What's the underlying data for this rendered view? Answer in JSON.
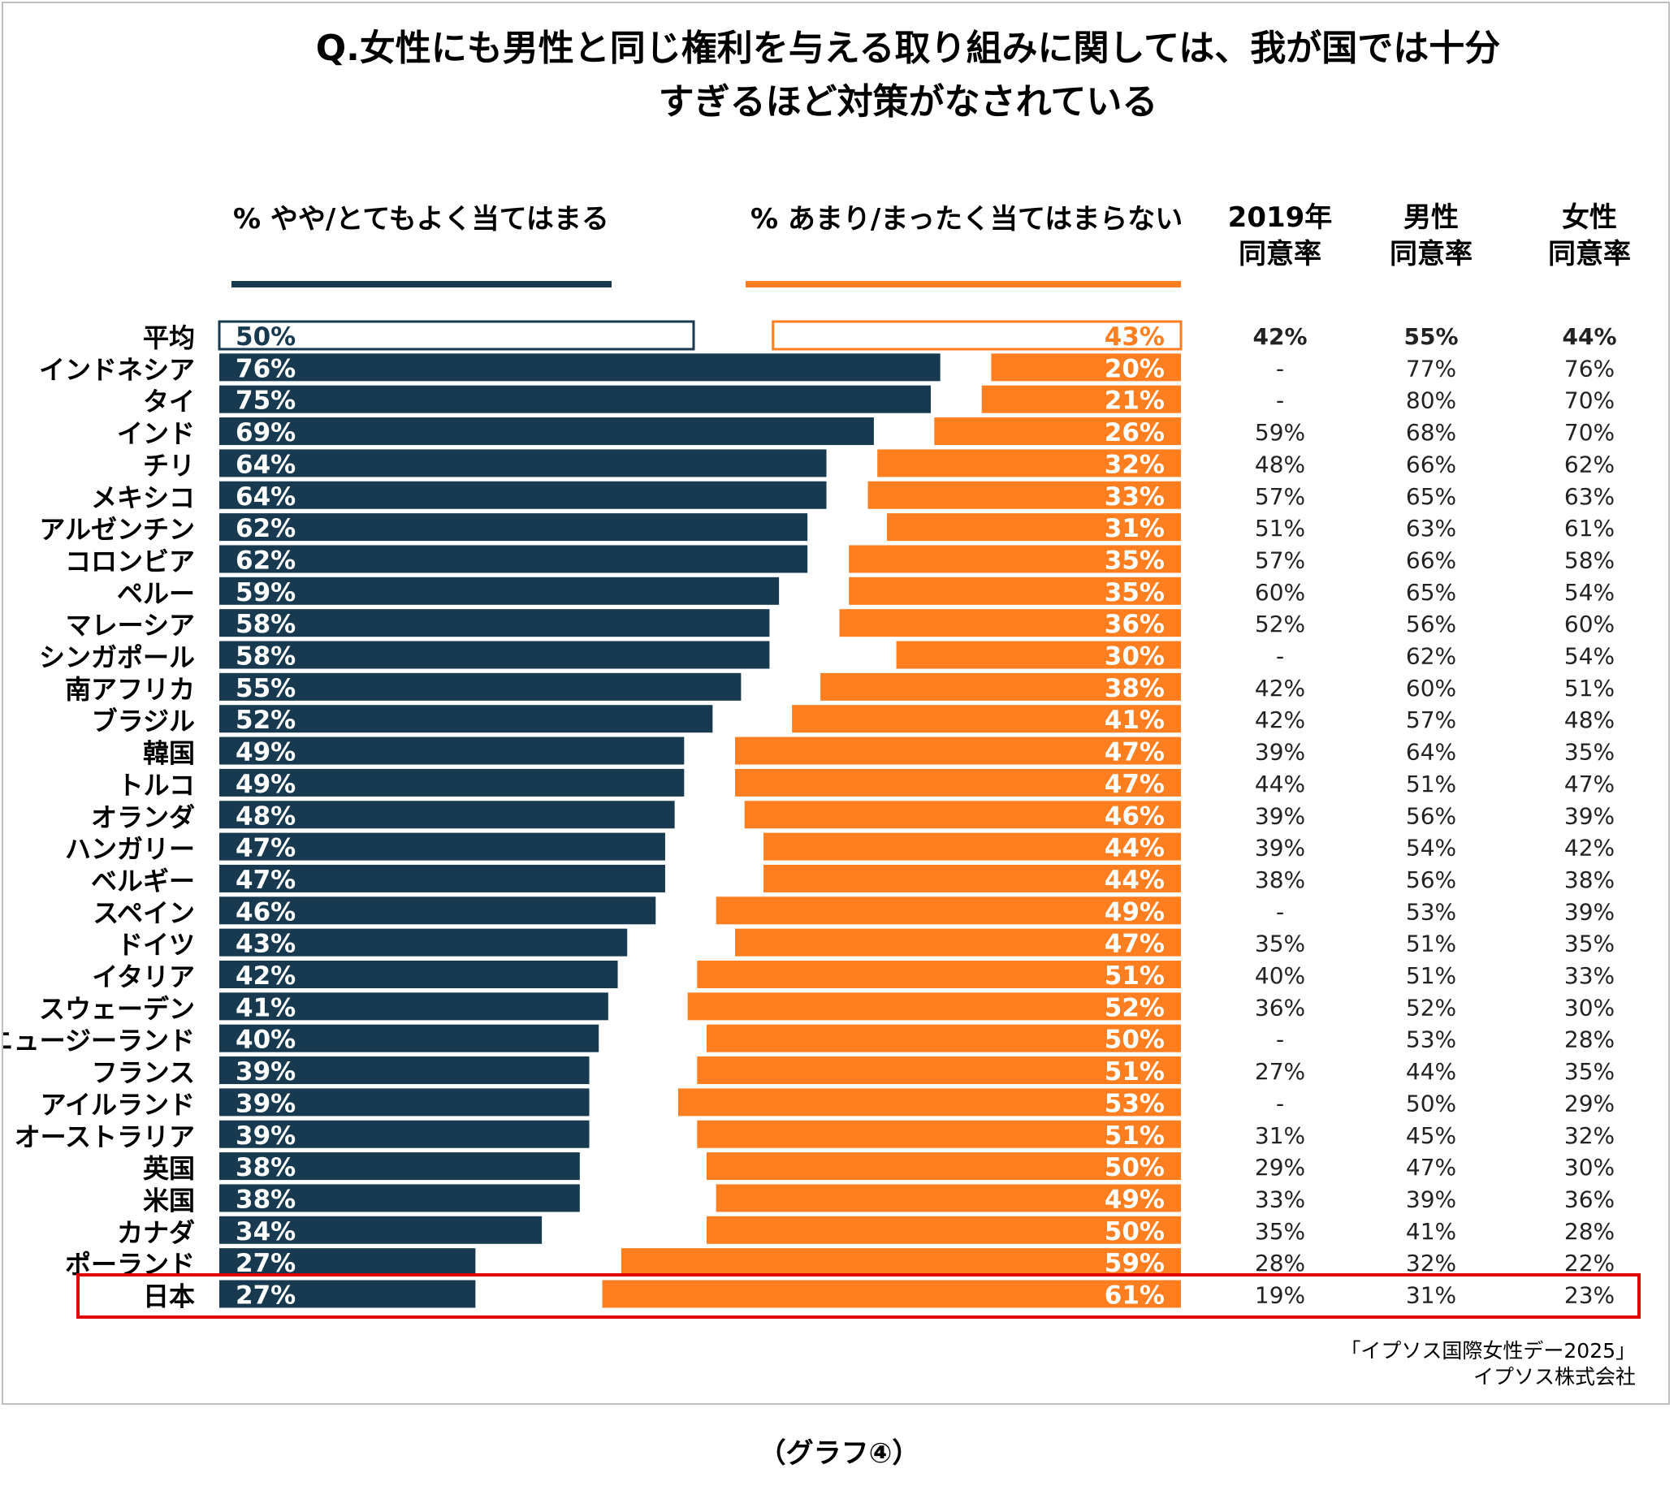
{
  "chart_data": {
    "type": "bar",
    "title_lines": [
      "Q.女性にも男性と同じ権利を与える取り組みに関しては、我が国では十分",
      "すぎるほど対策がなされている"
    ],
    "legend": {
      "agree": "% やや/とてもよく当てはまる",
      "disagree": "% あまり/まったく当てはまらない"
    },
    "column_headers": {
      "y2019": [
        "2019年",
        "同意率"
      ],
      "male": [
        "男性",
        "同意率"
      ],
      "female": [
        "女性",
        "同意率"
      ]
    },
    "xlim": [
      0,
      100
    ],
    "colors": {
      "agree": "#173a50",
      "disagree": "#ff7e1f",
      "highlight": "#e00000"
    },
    "highlight_row": "日本",
    "categories": [
      "平均",
      "インドネシア",
      "タイ",
      "インド",
      "チリ",
      "メキシコ",
      "アルゼンチン",
      "コロンビア",
      "ペルー",
      "マレーシア",
      "シンガポール",
      "南アフリカ",
      "ブラジル",
      "韓国",
      "トルコ",
      "オランダ",
      "ハンガリー",
      "ベルギー",
      "スペイン",
      "ドイツ",
      "イタリア",
      "スウェーデン",
      "ニュージーランド",
      "フランス",
      "アイルランド",
      "オーストラリア",
      "英国",
      "米国",
      "カナダ",
      "ポーランド",
      "日本"
    ],
    "series": [
      {
        "name": "% やや/とてもよく当てはまる",
        "values": [
          50,
          76,
          75,
          69,
          64,
          64,
          62,
          62,
          59,
          58,
          58,
          55,
          52,
          49,
          49,
          48,
          47,
          47,
          46,
          43,
          42,
          41,
          40,
          39,
          39,
          39,
          38,
          38,
          34,
          27,
          27
        ],
        "labels": [
          "50%",
          "76%",
          "75%",
          "69%",
          "64%",
          "64%",
          "62%",
          "62%",
          "59%",
          "58%",
          "58%",
          "55%",
          "52%",
          "49%",
          "49%",
          "48%",
          "47%",
          "47%",
          "46%",
          "43%",
          "42%",
          "41%",
          "40%",
          "39%",
          "39%",
          "39%",
          "38%",
          "38%",
          "34%",
          "27%",
          "27%"
        ]
      },
      {
        "name": "% あまり/まったく当てはまらない",
        "values": [
          43,
          20,
          21,
          26,
          32,
          33,
          31,
          35,
          35,
          36,
          30,
          38,
          41,
          47,
          47,
          46,
          44,
          44,
          49,
          47,
          51,
          52,
          50,
          51,
          53,
          51,
          50,
          49,
          50,
          59,
          61
        ],
        "labels": [
          "43%",
          "20%",
          "21%",
          "26%",
          "32%",
          "33%",
          "31%",
          "35%",
          "35%",
          "36%",
          "30%",
          "38%",
          "41%",
          "47%",
          "47%",
          "46%",
          "44%",
          "44%",
          "49%",
          "47%",
          "51%",
          "52%",
          "50%",
          "51%",
          "53%",
          "51%",
          "50%",
          "49%",
          "50%",
          "59%",
          "61%"
        ]
      }
    ],
    "table": {
      "y2019": [
        "42%",
        "-",
        "-",
        "59%",
        "48%",
        "57%",
        "51%",
        "57%",
        "60%",
        "52%",
        "-",
        "42%",
        "42%",
        "39%",
        "44%",
        "39%",
        "39%",
        "38%",
        "-",
        "35%",
        "40%",
        "36%",
        "-",
        "27%",
        "-",
        "31%",
        "29%",
        "33%",
        "35%",
        "28%",
        "19%"
      ],
      "male": [
        "55%",
        "77%",
        "80%",
        "68%",
        "66%",
        "65%",
        "63%",
        "66%",
        "65%",
        "56%",
        "62%",
        "60%",
        "57%",
        "64%",
        "51%",
        "56%",
        "54%",
        "56%",
        "53%",
        "51%",
        "51%",
        "52%",
        "53%",
        "44%",
        "50%",
        "45%",
        "47%",
        "39%",
        "41%",
        "32%",
        "31%"
      ],
      "female": [
        "44%",
        "76%",
        "70%",
        "70%",
        "62%",
        "63%",
        "61%",
        "58%",
        "54%",
        "60%",
        "54%",
        "51%",
        "48%",
        "35%",
        "47%",
        "39%",
        "42%",
        "38%",
        "39%",
        "35%",
        "33%",
        "30%",
        "28%",
        "35%",
        "29%",
        "32%",
        "30%",
        "36%",
        "28%",
        "22%",
        "23%"
      ]
    },
    "source_lines": [
      "「イプソス国際女性デー2025」",
      "イプソス株式会社"
    ]
  },
  "caption": "（グラフ④）"
}
